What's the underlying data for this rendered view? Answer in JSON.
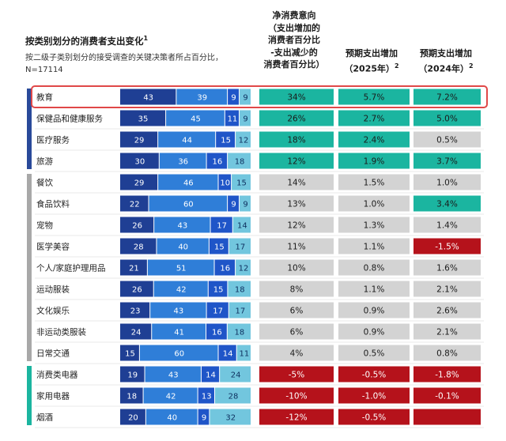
{
  "header": {
    "title": "按类别划分的消费者支出变化",
    "title_note": "1",
    "subtitle_line1": "按二级子类别划分的接受调查的关键决策者所占百分比，",
    "subtitle_line2": "N=17114",
    "col_net_line1": "净消费意向",
    "col_net_line2": "（支出增加的",
    "col_net_line3": "消费者百分比",
    "col_net_line4": "-支出减少的",
    "col_net_line5": "消费者百分比）",
    "col_2025_line1": "预期支出增加",
    "col_2025_line2": "（2025年）",
    "col_2025_note": "2",
    "col_2024_line1": "预期支出增加",
    "col_2024_line2": "（2024年）",
    "col_2024_note": "2"
  },
  "colors": {
    "bar_seg1": "#1f3f94",
    "bar_seg2": "#2f7ed8",
    "bar_seg3": "#1f55c8",
    "bar_seg4": "#72c6de",
    "cell_positive": "#1bb5a0",
    "cell_neutral": "#d3d3d3",
    "cell_negative": "#b5121b",
    "highlight_border": "#e04848",
    "group_bar_1": "#2a4a9a",
    "group_bar_2": "#a8a8a8",
    "group_bar_3": "#1bb5a0"
  },
  "chart_data": {
    "type": "table",
    "title": "按类别划分的消费者支出变化",
    "columns": [
      "",
      "",
      "净消费意向（支出增加的消费者百分比-支出减少的消费者百分比）",
      "预期支出增加（2025年）",
      "预期支出增加（2024年）"
    ],
    "rows": [
      {
        "label": "教育",
        "group": 1,
        "highlight": true,
        "bars": [
          43,
          39,
          9,
          9
        ],
        "net": "34%",
        "net_tone": "positive",
        "exp2025": "5.7%",
        "tone2025": "positive",
        "exp2024": "7.2%",
        "tone2024": "positive"
      },
      {
        "label": "保健品和健康服务",
        "group": 1,
        "bars": [
          35,
          45,
          11,
          9
        ],
        "net": "26%",
        "net_tone": "positive",
        "exp2025": "2.7%",
        "tone2025": "positive",
        "exp2024": "5.0%",
        "tone2024": "positive"
      },
      {
        "label": "医疗服务",
        "group": 1,
        "bars": [
          29,
          44,
          15,
          12
        ],
        "net": "18%",
        "net_tone": "positive",
        "exp2025": "2.4%",
        "tone2025": "positive",
        "exp2024": "0.5%",
        "tone2024": "neutral"
      },
      {
        "label": "旅游",
        "group": 1,
        "bars": [
          30,
          36,
          16,
          18
        ],
        "net": "12%",
        "net_tone": "positive",
        "exp2025": "1.9%",
        "tone2025": "positive",
        "exp2024": "3.7%",
        "tone2024": "positive"
      },
      {
        "label": "餐饮",
        "group": 2,
        "bars": [
          29,
          46,
          10,
          15
        ],
        "net": "14%",
        "net_tone": "neutral",
        "exp2025": "1.5%",
        "tone2025": "neutral",
        "exp2024": "1.0%",
        "tone2024": "neutral"
      },
      {
        "label": "食品饮料",
        "group": 2,
        "bars": [
          22,
          60,
          9,
          9
        ],
        "net": "13%",
        "net_tone": "neutral",
        "exp2025": "1.0%",
        "tone2025": "neutral",
        "exp2024": "3.4%",
        "tone2024": "positive"
      },
      {
        "label": "宠物",
        "group": 2,
        "bars": [
          26,
          43,
          17,
          14
        ],
        "net": "12%",
        "net_tone": "neutral",
        "exp2025": "1.3%",
        "tone2025": "neutral",
        "exp2024": "1.4%",
        "tone2024": "neutral"
      },
      {
        "label": "医学美容",
        "group": 2,
        "bars": [
          28,
          40,
          15,
          17
        ],
        "net": "11%",
        "net_tone": "neutral",
        "exp2025": "1.1%",
        "tone2025": "neutral",
        "exp2024": "-1.5%",
        "tone2024": "negative"
      },
      {
        "label": "个人/家庭护理用品",
        "group": 2,
        "bars": [
          21,
          51,
          16,
          12
        ],
        "net": "10%",
        "net_tone": "neutral",
        "exp2025": "0.8%",
        "tone2025": "neutral",
        "exp2024": "1.6%",
        "tone2024": "neutral"
      },
      {
        "label": "运动服装",
        "group": 2,
        "bars": [
          26,
          42,
          15,
          18
        ],
        "net": "8%",
        "net_tone": "neutral",
        "exp2025": "1.1%",
        "tone2025": "neutral",
        "exp2024": "2.1%",
        "tone2024": "neutral"
      },
      {
        "label": "文化娱乐",
        "group": 2,
        "bars": [
          23,
          43,
          17,
          17
        ],
        "net": "6%",
        "net_tone": "neutral",
        "exp2025": "0.9%",
        "tone2025": "neutral",
        "exp2024": "2.6%",
        "tone2024": "neutral"
      },
      {
        "label": "非运动类服装",
        "group": 2,
        "bars": [
          24,
          41,
          16,
          18
        ],
        "net": "6%",
        "net_tone": "neutral",
        "exp2025": "0.9%",
        "tone2025": "neutral",
        "exp2024": "2.1%",
        "tone2024": "neutral"
      },
      {
        "label": "日常交通",
        "group": 2,
        "bars": [
          15,
          60,
          14,
          11
        ],
        "net": "4%",
        "net_tone": "neutral",
        "exp2025": "0.5%",
        "tone2025": "neutral",
        "exp2024": "0.8%",
        "tone2024": "neutral"
      },
      {
        "label": "消费类电器",
        "group": 3,
        "bars": [
          19,
          43,
          14,
          24
        ],
        "net": "-5%",
        "net_tone": "negative",
        "exp2025": "-0.5%",
        "tone2025": "negative",
        "exp2024": "-1.8%",
        "tone2024": "negative"
      },
      {
        "label": "家用电器",
        "group": 3,
        "bars": [
          18,
          42,
          13,
          28
        ],
        "net": "-10%",
        "net_tone": "negative",
        "exp2025": "-1.0%",
        "tone2025": "negative",
        "exp2024": "-0.1%",
        "tone2024": "negative"
      },
      {
        "label": "烟酒",
        "group": 3,
        "bars": [
          20,
          40,
          9,
          32
        ],
        "net": "-12%",
        "net_tone": "negative",
        "exp2025": "-0.5%",
        "tone2025": "negative",
        "exp2024": "",
        "tone2024": "negative"
      }
    ]
  }
}
